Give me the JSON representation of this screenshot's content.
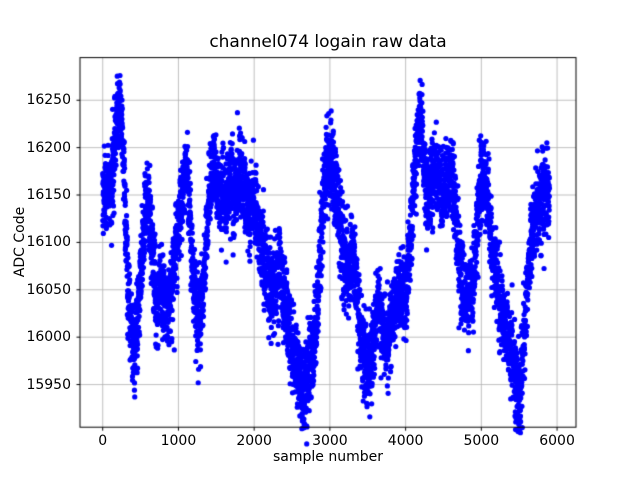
{
  "chart_data": {
    "type": "scatter",
    "title": "channel074 logain raw data",
    "xlabel": "sample number",
    "ylabel": "ADC Code",
    "marker_color": "#0000ff",
    "marker_radius": 2.6,
    "grid": true,
    "grid_color": "#b0b0b0",
    "frame_color": "#000000",
    "xlim": [
      -300,
      6250
    ],
    "ylim": [
      15905,
      16295
    ],
    "xticks": [
      0,
      1000,
      2000,
      3000,
      4000,
      5000,
      6000
    ],
    "yticks": [
      15950,
      16000,
      16050,
      16100,
      16150,
      16200,
      16250
    ],
    "n_points": 5900,
    "noise_std": 20,
    "fast_osc_amplitude": 13,
    "fast_osc_period": 31,
    "seed": 74,
    "mean_profile": [
      [
        0,
        16140
      ],
      [
        40,
        16155
      ],
      [
        80,
        16160
      ],
      [
        120,
        16150
      ],
      [
        160,
        16210
      ],
      [
        200,
        16245
      ],
      [
        240,
        16240
      ],
      [
        280,
        16180
      ],
      [
        320,
        16080
      ],
      [
        360,
        16020
      ],
      [
        400,
        15990
      ],
      [
        440,
        16000
      ],
      [
        480,
        16040
      ],
      [
        520,
        16090
      ],
      [
        560,
        16130
      ],
      [
        600,
        16145
      ],
      [
        640,
        16110
      ],
      [
        680,
        16060
      ],
      [
        720,
        16030
      ],
      [
        760,
        16055
      ],
      [
        800,
        16050
      ],
      [
        840,
        16025
      ],
      [
        880,
        16035
      ],
      [
        920,
        16060
      ],
      [
        960,
        16090
      ],
      [
        1000,
        16120
      ],
      [
        1040,
        16145
      ],
      [
        1080,
        16170
      ],
      [
        1110,
        16185
      ],
      [
        1140,
        16140
      ],
      [
        1180,
        16080
      ],
      [
        1220,
        16040
      ],
      [
        1260,
        16020
      ],
      [
        1300,
        16030
      ],
      [
        1340,
        16070
      ],
      [
        1380,
        16120
      ],
      [
        1420,
        16165
      ],
      [
        1460,
        16185
      ],
      [
        1500,
        16165
      ],
      [
        1540,
        16150
      ],
      [
        1580,
        16155
      ],
      [
        1620,
        16145
      ],
      [
        1660,
        16155
      ],
      [
        1700,
        16165
      ],
      [
        1740,
        16150
      ],
      [
        1780,
        16170
      ],
      [
        1820,
        16165
      ],
      [
        1860,
        16155
      ],
      [
        1900,
        16145
      ],
      [
        1940,
        16130
      ],
      [
        1980,
        16145
      ],
      [
        2020,
        16135
      ],
      [
        2060,
        16110
      ],
      [
        2100,
        16095
      ],
      [
        2140,
        16075
      ],
      [
        2180,
        16060
      ],
      [
        2220,
        16045
      ],
      [
        2260,
        16050
      ],
      [
        2300,
        16060
      ],
      [
        2340,
        16080
      ],
      [
        2380,
        16050
      ],
      [
        2420,
        16030
      ],
      [
        2460,
        16015
      ],
      [
        2500,
        15995
      ],
      [
        2540,
        15980
      ],
      [
        2580,
        15965
      ],
      [
        2620,
        15950
      ],
      [
        2660,
        15945
      ],
      [
        2700,
        15955
      ],
      [
        2740,
        15975
      ],
      [
        2780,
        15985
      ],
      [
        2820,
        16010
      ],
      [
        2860,
        16070
      ],
      [
        2900,
        16130
      ],
      [
        2940,
        16170
      ],
      [
        2980,
        16185
      ],
      [
        3020,
        16180
      ],
      [
        3060,
        16165
      ],
      [
        3100,
        16145
      ],
      [
        3140,
        16115
      ],
      [
        3180,
        16085
      ],
      [
        3220,
        16065
      ],
      [
        3260,
        16075
      ],
      [
        3300,
        16095
      ],
      [
        3340,
        16060
      ],
      [
        3380,
        16025
      ],
      [
        3420,
        15995
      ],
      [
        3460,
        15975
      ],
      [
        3500,
        15965
      ],
      [
        3540,
        15980
      ],
      [
        3580,
        16005
      ],
      [
        3620,
        16030
      ],
      [
        3660,
        16040
      ],
      [
        3700,
        16005
      ],
      [
        3740,
        15990
      ],
      [
        3780,
        16005
      ],
      [
        3820,
        16025
      ],
      [
        3860,
        16035
      ],
      [
        3900,
        16045
      ],
      [
        3940,
        16050
      ],
      [
        3980,
        16040
      ],
      [
        4020,
        16060
      ],
      [
        4060,
        16100
      ],
      [
        4100,
        16150
      ],
      [
        4140,
        16195
      ],
      [
        4180,
        16225
      ],
      [
        4210,
        16230
      ],
      [
        4240,
        16185
      ],
      [
        4280,
        16150
      ],
      [
        4320,
        16155
      ],
      [
        4360,
        16170
      ],
      [
        4400,
        16180
      ],
      [
        4440,
        16165
      ],
      [
        4480,
        16150
      ],
      [
        4520,
        16155
      ],
      [
        4560,
        16165
      ],
      [
        4600,
        16170
      ],
      [
        4640,
        16145
      ],
      [
        4680,
        16110
      ],
      [
        4720,
        16075
      ],
      [
        4760,
        16050
      ],
      [
        4800,
        16040
      ],
      [
        4840,
        16055
      ],
      [
        4880,
        16045
      ],
      [
        4920,
        16090
      ],
      [
        4960,
        16140
      ],
      [
        5000,
        16165
      ],
      [
        5040,
        16170
      ],
      [
        5080,
        16150
      ],
      [
        5120,
        16110
      ],
      [
        5160,
        16080
      ],
      [
        5200,
        16060
      ],
      [
        5240,
        16040
      ],
      [
        5280,
        16025
      ],
      [
        5320,
        16010
      ],
      [
        5360,
        15995
      ],
      [
        5400,
        15985
      ],
      [
        5440,
        15965
      ],
      [
        5480,
        15940
      ],
      [
        5520,
        15945
      ],
      [
        5560,
        15995
      ],
      [
        5600,
        16050
      ],
      [
        5640,
        16090
      ],
      [
        5680,
        16115
      ],
      [
        5720,
        16130
      ],
      [
        5760,
        16140
      ],
      [
        5800,
        16150
      ],
      [
        5840,
        16155
      ],
      [
        5880,
        16150
      ],
      [
        5900,
        16145
      ]
    ]
  }
}
